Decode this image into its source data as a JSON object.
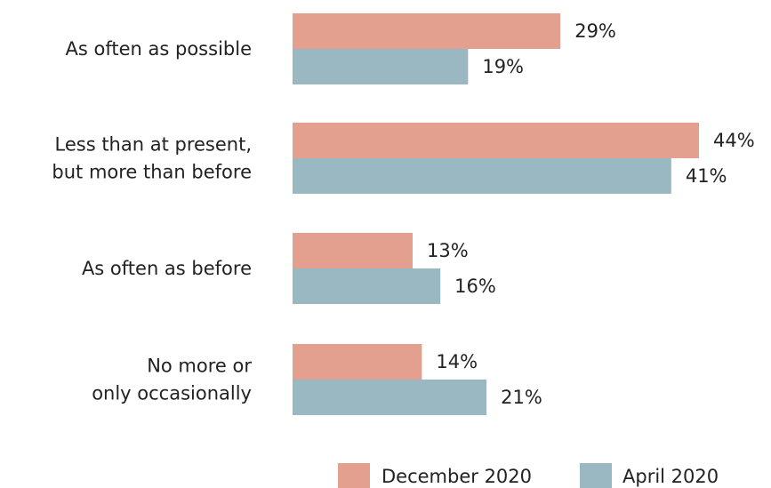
{
  "chart_data": {
    "type": "bar",
    "orientation": "horizontal",
    "categories": [
      [
        "As often as possible"
      ],
      [
        "Less than at present,",
        "but more than before"
      ],
      [
        "As often as before"
      ],
      [
        "No more or",
        "only occasionally"
      ]
    ],
    "series": [
      {
        "name": "December 2020",
        "color": "#e3a08f",
        "values": [
          29,
          44,
          13,
          14
        ],
        "labels": [
          "29%",
          "44%",
          "13%",
          "14%"
        ]
      },
      {
        "name": "April 2020",
        "color": "#9ab8c2",
        "values": [
          19,
          41,
          16,
          21
        ],
        "labels": [
          "19%",
          "41%",
          "16%",
          "21%"
        ]
      }
    ],
    "xlim": [
      0,
      50
    ],
    "legend_position": "bottom-right",
    "grid": false
  }
}
